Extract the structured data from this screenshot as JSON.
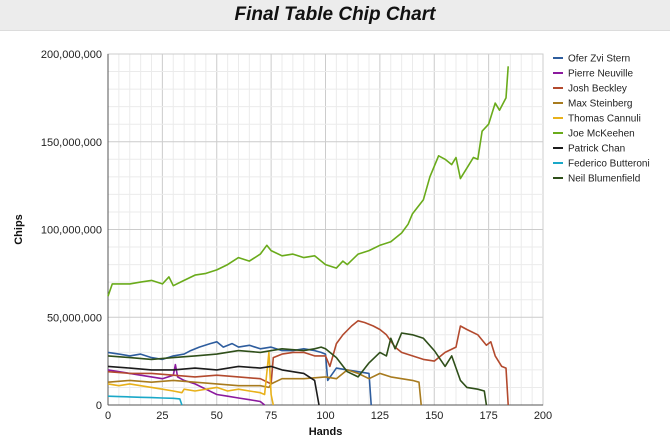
{
  "chart_data": {
    "type": "line",
    "title": "Final Table Chip Chart",
    "xlabel": "Hands",
    "ylabel": "Chips",
    "xlim": [
      0,
      200
    ],
    "ylim": [
      0,
      200000000
    ],
    "x_ticks": [
      "0",
      "25",
      "50",
      "75",
      "100",
      "125",
      "150",
      "175",
      "200"
    ],
    "x_tick_values": [
      0,
      25,
      50,
      75,
      100,
      125,
      150,
      175,
      200
    ],
    "y_ticks": [
      "0",
      "50,000,000",
      "100,000,000",
      "150,000,000",
      "200,000,000"
    ],
    "y_tick_values": [
      0,
      50000000,
      100000000,
      150000000,
      200000000
    ],
    "grid": true,
    "legend_position": "right",
    "series": [
      {
        "name": "Ofer Zvi Stern",
        "color": "#2e5d9e",
        "points": [
          [
            0,
            30000000
          ],
          [
            5,
            29000000
          ],
          [
            10,
            28000000
          ],
          [
            15,
            29000000
          ],
          [
            20,
            27000000
          ],
          [
            25,
            26000000
          ],
          [
            30,
            28000000
          ],
          [
            35,
            29000000
          ],
          [
            38,
            31000000
          ],
          [
            42,
            33000000
          ],
          [
            47,
            35000000
          ],
          [
            50,
            36000000
          ],
          [
            53,
            33000000
          ],
          [
            57,
            35000000
          ],
          [
            60,
            33000000
          ],
          [
            65,
            34000000
          ],
          [
            70,
            32000000
          ],
          [
            75,
            33000000
          ],
          [
            80,
            31000000
          ],
          [
            85,
            31000000
          ],
          [
            90,
            32000000
          ],
          [
            95,
            31000000
          ],
          [
            98,
            30000000
          ],
          [
            100,
            29000000
          ],
          [
            101,
            14000000
          ],
          [
            105,
            21000000
          ],
          [
            110,
            20000000
          ],
          [
            115,
            19000000
          ],
          [
            120,
            18000000
          ],
          [
            121,
            0
          ]
        ]
      },
      {
        "name": "Pierre Neuville",
        "color": "#8b1a9e",
        "points": [
          [
            0,
            20000000
          ],
          [
            5,
            19000000
          ],
          [
            10,
            18000000
          ],
          [
            15,
            17000000
          ],
          [
            20,
            16000000
          ],
          [
            25,
            15000000
          ],
          [
            30,
            17000000
          ],
          [
            31,
            23000000
          ],
          [
            32,
            16000000
          ],
          [
            35,
            14000000
          ],
          [
            40,
            12000000
          ],
          [
            45,
            9000000
          ],
          [
            50,
            6000000
          ],
          [
            55,
            5000000
          ],
          [
            60,
            4000000
          ],
          [
            65,
            3000000
          ],
          [
            70,
            2000000
          ],
          [
            72,
            0
          ]
        ]
      },
      {
        "name": "Josh Beckley",
        "color": "#b34a2e",
        "points": [
          [
            0,
            19000000
          ],
          [
            10,
            18000000
          ],
          [
            20,
            18000000
          ],
          [
            30,
            17000000
          ],
          [
            40,
            16000000
          ],
          [
            50,
            17000000
          ],
          [
            60,
            16000000
          ],
          [
            70,
            15000000
          ],
          [
            75,
            12000000
          ],
          [
            76,
            27000000
          ],
          [
            80,
            29000000
          ],
          [
            85,
            30000000
          ],
          [
            90,
            30000000
          ],
          [
            95,
            28000000
          ],
          [
            100,
            28000000
          ],
          [
            102,
            22000000
          ],
          [
            105,
            35000000
          ],
          [
            108,
            40000000
          ],
          [
            112,
            45000000
          ],
          [
            115,
            48000000
          ],
          [
            118,
            47000000
          ],
          [
            122,
            45000000
          ],
          [
            125,
            43000000
          ],
          [
            128,
            40000000
          ],
          [
            132,
            33000000
          ],
          [
            135,
            30000000
          ],
          [
            140,
            28000000
          ],
          [
            145,
            26000000
          ],
          [
            150,
            25000000
          ],
          [
            155,
            30000000
          ],
          [
            160,
            33000000
          ],
          [
            162,
            45000000
          ],
          [
            165,
            43000000
          ],
          [
            170,
            40000000
          ],
          [
            174,
            34000000
          ],
          [
            176,
            36000000
          ],
          [
            178,
            28000000
          ],
          [
            181,
            22000000
          ],
          [
            183,
            21000000
          ],
          [
            184,
            0
          ]
        ]
      },
      {
        "name": "Max Steinberg",
        "color": "#a87b1f",
        "points": [
          [
            0,
            13000000
          ],
          [
            10,
            14000000
          ],
          [
            20,
            13000000
          ],
          [
            30,
            14000000
          ],
          [
            40,
            13000000
          ],
          [
            50,
            12000000
          ],
          [
            60,
            11000000
          ],
          [
            70,
            11000000
          ],
          [
            74,
            10000000
          ],
          [
            75,
            12000000
          ],
          [
            80,
            15000000
          ],
          [
            90,
            15000000
          ],
          [
            100,
            16000000
          ],
          [
            105,
            15000000
          ],
          [
            110,
            20000000
          ],
          [
            115,
            18000000
          ],
          [
            120,
            15000000
          ],
          [
            125,
            18000000
          ],
          [
            130,
            16000000
          ],
          [
            135,
            15000000
          ],
          [
            140,
            14000000
          ],
          [
            143,
            13000000
          ],
          [
            144,
            0
          ]
        ]
      },
      {
        "name": "Thomas Cannuli",
        "color": "#e8b11b",
        "points": [
          [
            0,
            12000000
          ],
          [
            5,
            11000000
          ],
          [
            10,
            12000000
          ],
          [
            15,
            11000000
          ],
          [
            20,
            10000000
          ],
          [
            25,
            9000000
          ],
          [
            30,
            8000000
          ],
          [
            34,
            7000000
          ],
          [
            35,
            9000000
          ],
          [
            40,
            8000000
          ],
          [
            45,
            9000000
          ],
          [
            50,
            10000000
          ],
          [
            55,
            8000000
          ],
          [
            60,
            9000000
          ],
          [
            65,
            8000000
          ],
          [
            70,
            7000000
          ],
          [
            72,
            6000000
          ],
          [
            74,
            30000000
          ],
          [
            75,
            6000000
          ],
          [
            76,
            0
          ]
        ]
      },
      {
        "name": "Joe McKeehen",
        "color": "#6aab1b",
        "points": [
          [
            0,
            62000000
          ],
          [
            2,
            69000000
          ],
          [
            10,
            69000000
          ],
          [
            15,
            70000000
          ],
          [
            20,
            71000000
          ],
          [
            25,
            69000000
          ],
          [
            28,
            73000000
          ],
          [
            30,
            68000000
          ],
          [
            35,
            71000000
          ],
          [
            40,
            74000000
          ],
          [
            45,
            75000000
          ],
          [
            50,
            77000000
          ],
          [
            55,
            80000000
          ],
          [
            60,
            84000000
          ],
          [
            65,
            82000000
          ],
          [
            70,
            86000000
          ],
          [
            73,
            91000000
          ],
          [
            75,
            88000000
          ],
          [
            80,
            85000000
          ],
          [
            85,
            86000000
          ],
          [
            90,
            84000000
          ],
          [
            95,
            85000000
          ],
          [
            100,
            80000000
          ],
          [
            105,
            78000000
          ],
          [
            108,
            82000000
          ],
          [
            110,
            80000000
          ],
          [
            115,
            86000000
          ],
          [
            120,
            88000000
          ],
          [
            125,
            91000000
          ],
          [
            130,
            93000000
          ],
          [
            135,
            98000000
          ],
          [
            138,
            103000000
          ],
          [
            140,
            109000000
          ],
          [
            145,
            117000000
          ],
          [
            148,
            130000000
          ],
          [
            152,
            142000000
          ],
          [
            155,
            140000000
          ],
          [
            158,
            137000000
          ],
          [
            160,
            141000000
          ],
          [
            162,
            129000000
          ],
          [
            165,
            135000000
          ],
          [
            168,
            141000000
          ],
          [
            170,
            140000000
          ],
          [
            172,
            156000000
          ],
          [
            175,
            160000000
          ],
          [
            178,
            172000000
          ],
          [
            180,
            168000000
          ],
          [
            183,
            175000000
          ],
          [
            184,
            193000000
          ]
        ]
      },
      {
        "name": "Patrick Chan",
        "color": "#1c1c1c",
        "points": [
          [
            0,
            22000000
          ],
          [
            10,
            21000000
          ],
          [
            20,
            20000000
          ],
          [
            30,
            20000000
          ],
          [
            40,
            21000000
          ],
          [
            50,
            20000000
          ],
          [
            60,
            22000000
          ],
          [
            70,
            21000000
          ],
          [
            75,
            22000000
          ],
          [
            80,
            20000000
          ],
          [
            90,
            18000000
          ],
          [
            95,
            14000000
          ],
          [
            97,
            0
          ]
        ]
      },
      {
        "name": "Federico Butteroni",
        "color": "#1aa8c8",
        "points": [
          [
            0,
            5000000
          ],
          [
            5,
            4800000
          ],
          [
            10,
            4600000
          ],
          [
            15,
            4400000
          ],
          [
            20,
            4200000
          ],
          [
            25,
            4000000
          ],
          [
            30,
            3800000
          ],
          [
            33,
            3500000
          ],
          [
            34,
            0
          ]
        ]
      },
      {
        "name": "Neil Blumenfield",
        "color": "#2f4f1a",
        "points": [
          [
            0,
            28000000
          ],
          [
            10,
            27000000
          ],
          [
            20,
            26000000
          ],
          [
            30,
            27000000
          ],
          [
            40,
            28000000
          ],
          [
            50,
            29000000
          ],
          [
            60,
            31000000
          ],
          [
            70,
            30000000
          ],
          [
            80,
            32000000
          ],
          [
            90,
            31000000
          ],
          [
            95,
            32000000
          ],
          [
            98,
            33000000
          ],
          [
            100,
            32000000
          ],
          [
            105,
            27000000
          ],
          [
            110,
            19000000
          ],
          [
            115,
            16000000
          ],
          [
            120,
            24000000
          ],
          [
            125,
            30000000
          ],
          [
            128,
            28000000
          ],
          [
            130,
            38000000
          ],
          [
            132,
            32000000
          ],
          [
            135,
            41000000
          ],
          [
            140,
            40000000
          ],
          [
            145,
            38000000
          ],
          [
            150,
            31000000
          ],
          [
            155,
            22000000
          ],
          [
            158,
            28000000
          ],
          [
            162,
            14000000
          ],
          [
            165,
            10000000
          ],
          [
            170,
            9000000
          ],
          [
            173,
            8000000
          ],
          [
            174,
            0
          ]
        ]
      }
    ]
  }
}
